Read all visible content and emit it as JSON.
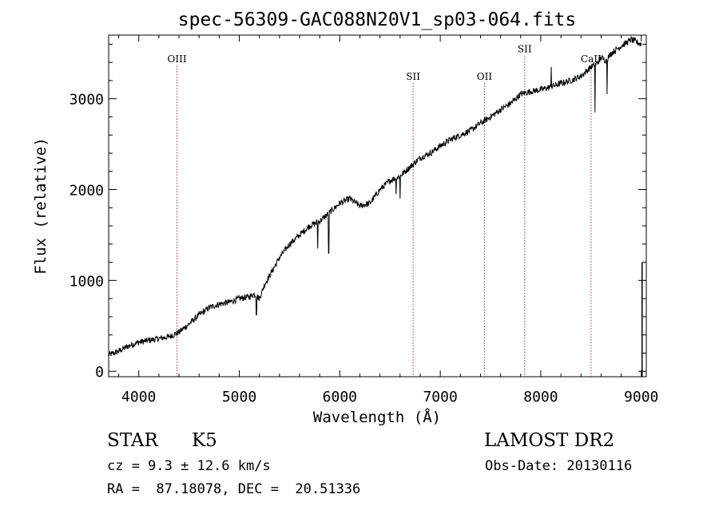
{
  "chart_data": {
    "type": "line",
    "title": "spec-56309-GAC088N20V1_sp03-064.fits",
    "xlabel": "Wavelength (Å)",
    "ylabel": "Flux (relative)",
    "xlim": [
      3700,
      9050
    ],
    "ylim": [
      -60,
      3700
    ],
    "xticks": [
      4000,
      5000,
      6000,
      7000,
      8000,
      9000
    ],
    "yticks": [
      0,
      1000,
      2000,
      3000
    ],
    "xtick_labels": [
      "4000",
      "5000",
      "6000",
      "7000",
      "8000",
      "9000"
    ],
    "ytick_labels": [
      "0",
      "1000",
      "2000",
      "3000"
    ],
    "grid": false,
    "series": [
      {
        "x": [
          3700,
          3800,
          3900,
          4000,
          4100,
          4200,
          4300,
          4400,
          4500,
          4600,
          4700,
          4800,
          4900,
          5000,
          5100,
          5150,
          5200,
          5250,
          5300,
          5400,
          5500,
          5600,
          5700,
          5800,
          5900,
          6000,
          6100,
          6200,
          6300,
          6400,
          6500,
          6600,
          6700,
          6800,
          6900,
          7000,
          7100,
          7200,
          7300,
          7400,
          7500,
          7600,
          7700,
          7800,
          7900,
          8000,
          8100,
          8200,
          8300,
          8400,
          8500,
          8550,
          8600,
          8650,
          8700,
          8800,
          8900,
          9000
        ],
        "y": [
          180,
          220,
          280,
          320,
          340,
          360,
          380,
          430,
          520,
          620,
          700,
          740,
          760,
          800,
          820,
          850,
          800,
          950,
          1050,
          1250,
          1400,
          1500,
          1600,
          1650,
          1750,
          1850,
          1900,
          1820,
          1850,
          2000,
          2100,
          2150,
          2250,
          2350,
          2400,
          2480,
          2550,
          2600,
          2650,
          2730,
          2800,
          2880,
          2950,
          3050,
          3080,
          3100,
          3130,
          3170,
          3200,
          3250,
          3350,
          3380,
          3450,
          3420,
          3500,
          3580,
          3650,
          3600
        ]
      }
    ],
    "dips": [
      {
        "x": 5170,
        "y": 620
      },
      {
        "x": 5780,
        "y": 1350
      },
      {
        "x": 5890,
        "y": 1300
      },
      {
        "x": 6560,
        "y": 1950
      },
      {
        "x": 6600,
        "y": 1900
      },
      {
        "x": 8540,
        "y": 2850
      },
      {
        "x": 8660,
        "y": 3050
      }
    ],
    "spikes": [
      {
        "x": 8105,
        "y": 3350
      }
    ],
    "annotations": [
      {
        "label": "OIII",
        "x": 4380,
        "label_y": 3400
      },
      {
        "label": "SII",
        "x": 6730,
        "label_y": 3210
      },
      {
        "label": "OII",
        "x": 7440,
        "label_y": 3210
      },
      {
        "label": "SII",
        "x": 7840,
        "label_y": 3510
      },
      {
        "label": "CaII",
        "x": 8500,
        "label_y": 3400
      }
    ]
  },
  "info": {
    "object_type": "STAR",
    "subclass": "K5",
    "survey": "LAMOST DR2",
    "redshift_line": "cz = 9.3 ± 12.6 km/s",
    "obs_date": "Obs-Date: 20130116",
    "coords": "RA =  87.18078, DEC =  20.51336"
  },
  "colors": {
    "axis": "#000000",
    "spectrum": "#000000",
    "line_marker": "#b03030"
  }
}
